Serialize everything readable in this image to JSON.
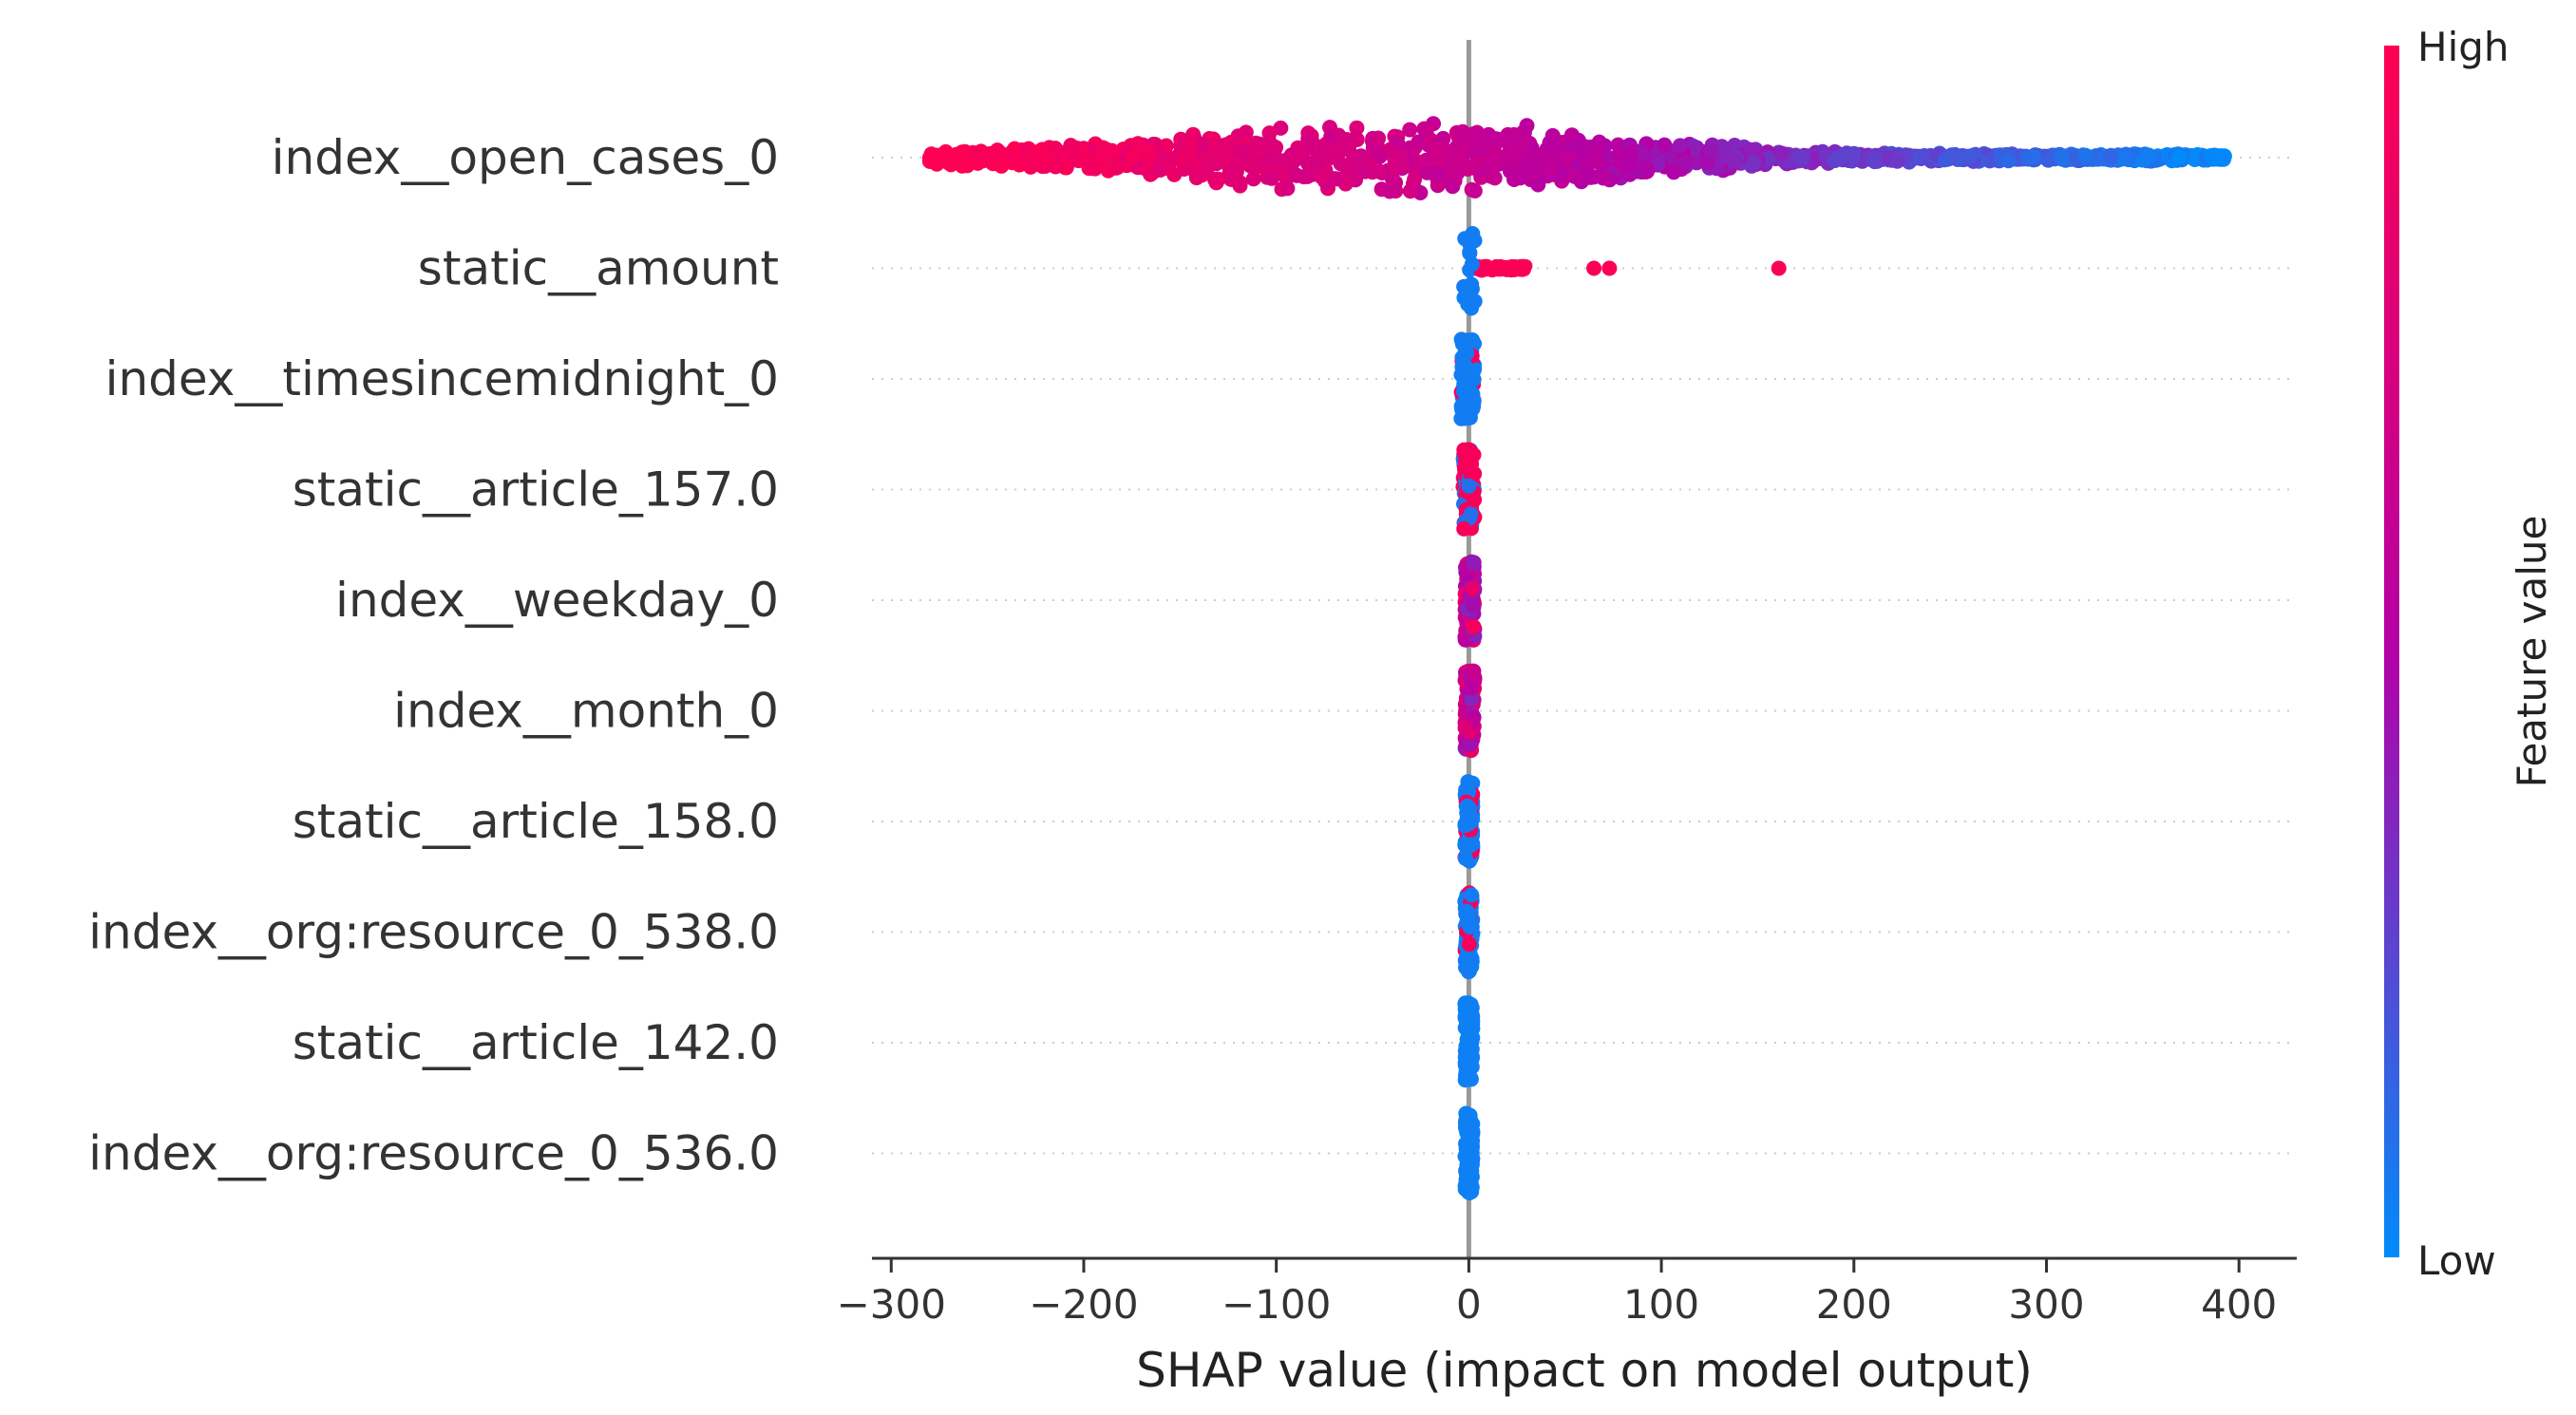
{
  "chart_data": {
    "type": "scatter",
    "subtype": "shap-beeswarm",
    "title": "",
    "xlabel": "SHAP value (impact on model output)",
    "ylabel": "",
    "xlim": [
      -310,
      430
    ],
    "xticks": [
      -300,
      -200,
      -100,
      0,
      100,
      200,
      300,
      400
    ],
    "xtick_labels": [
      "−300",
      "−200",
      "−100",
      "0",
      "100",
      "200",
      "300",
      "400"
    ],
    "grid": false,
    "features": [
      {
        "name": "index__open_cases_0",
        "range": [
          -280,
          395
        ],
        "spread": "wide",
        "color_trend": "high-negative",
        "outliers": []
      },
      {
        "name": "static__amount",
        "range": [
          -3,
          30
        ],
        "spread": "narrow",
        "color_trend": "low-at-zero",
        "outliers": [
          65,
          73,
          161
        ]
      },
      {
        "name": "index__timesincemidnight_0",
        "range": [
          -4,
          3
        ],
        "spread": "narrow",
        "color_trend": "mostly-low",
        "outliers": []
      },
      {
        "name": "static__article_157.0",
        "range": [
          -3,
          3
        ],
        "spread": "narrow",
        "color_trend": "mostly-high",
        "outliers": []
      },
      {
        "name": "index__weekday_0",
        "range": [
          -2,
          3
        ],
        "spread": "narrow",
        "color_trend": "mixed",
        "outliers": []
      },
      {
        "name": "index__month_0",
        "range": [
          -2,
          3
        ],
        "spread": "narrow",
        "color_trend": "mixed",
        "outliers": []
      },
      {
        "name": "static__article_158.0",
        "range": [
          -2,
          2
        ],
        "spread": "narrow",
        "color_trend": "mostly-low",
        "outliers": []
      },
      {
        "name": "index__org:resource_0_538.0",
        "range": [
          -2,
          2
        ],
        "spread": "narrow",
        "color_trend": "mostly-low",
        "outliers": []
      },
      {
        "name": "static__article_142.0",
        "range": [
          -2,
          2
        ],
        "spread": "narrow",
        "color_trend": "low",
        "outliers": []
      },
      {
        "name": "index__org:resource_0_536.0",
        "range": [
          -2,
          2
        ],
        "spread": "narrow",
        "color_trend": "low",
        "outliers": []
      }
    ],
    "colorbar": {
      "title": "Feature value",
      "high_label": "High",
      "low_label": "Low",
      "high_color": "#ff0052",
      "mid_color": "#b400a6",
      "low_color": "#008bfb"
    },
    "zero_line_color": "#999999"
  }
}
